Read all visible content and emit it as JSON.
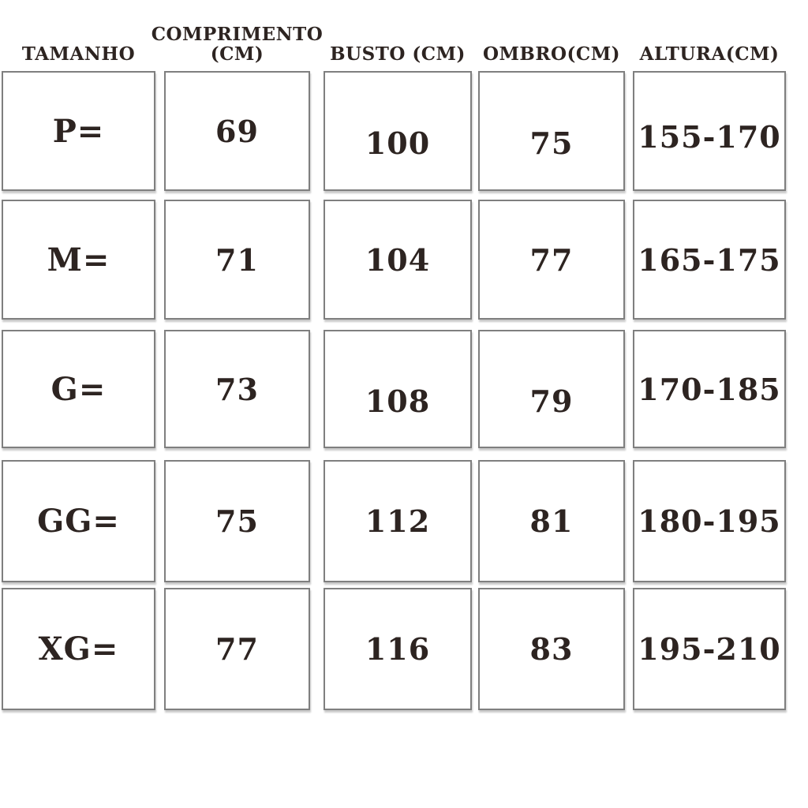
{
  "chart_data": {
    "type": "table",
    "columns": [
      "TAMANHO",
      "COMPRIMENTO (CM)",
      "BUSTO (CM)",
      "OMBRO(CM)",
      "ALTURA(CM)"
    ],
    "rows": [
      [
        "P=",
        "69",
        "100",
        "75",
        "155-170"
      ],
      [
        "M=",
        "71",
        "104",
        "77",
        "165-175"
      ],
      [
        "G=",
        "73",
        "108",
        "79",
        "170-185"
      ],
      [
        "GG=",
        "75",
        "112",
        "81",
        "180-195"
      ],
      [
        "XG=",
        "77",
        "116",
        "83",
        "195-210"
      ]
    ]
  },
  "colors": {
    "text": "#2d2421",
    "cell_border": "#7f7f7f",
    "background": "#ffffff"
  }
}
